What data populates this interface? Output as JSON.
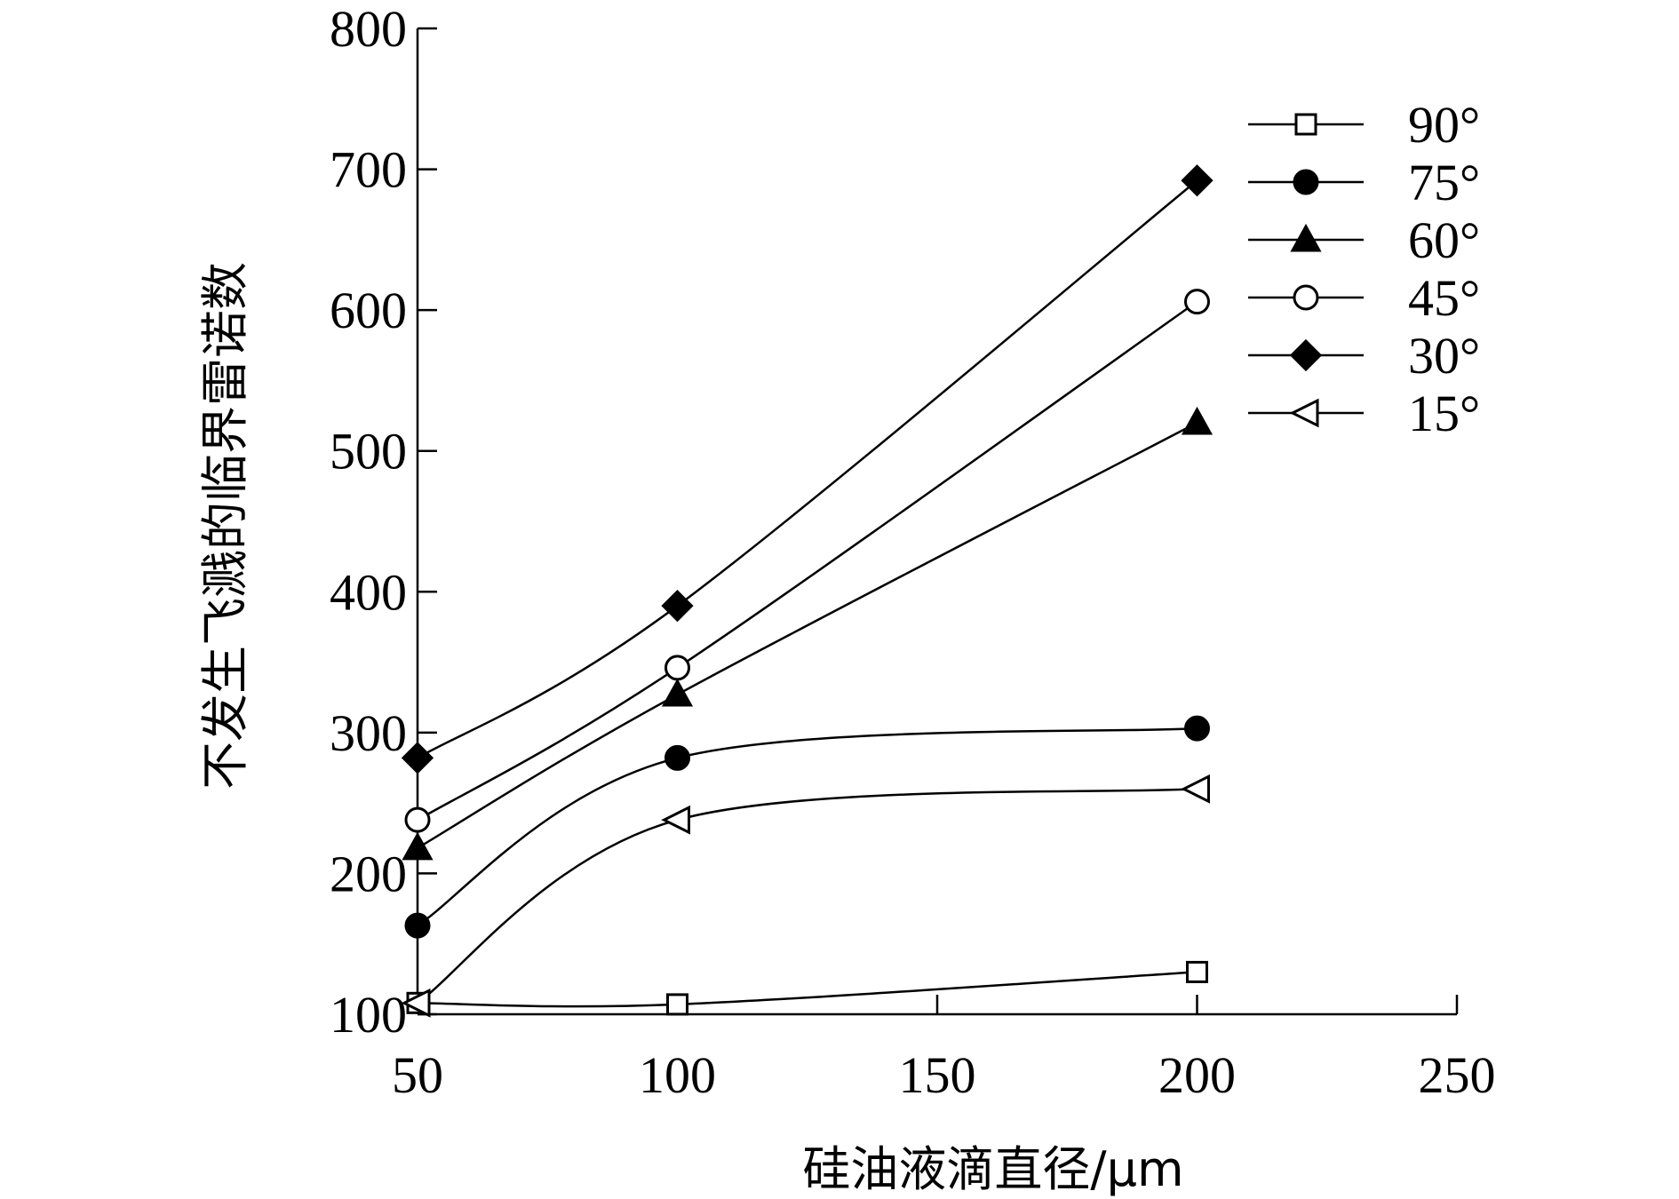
{
  "chart_data": {
    "type": "line",
    "title": "",
    "xlabel": "硅油液滴直径/μm",
    "ylabel": "不发生飞溅的临界雷诺数",
    "xlim": [
      50,
      250
    ],
    "ylim": [
      100,
      800
    ],
    "xticks": [
      50,
      100,
      150,
      200,
      250
    ],
    "yticks": [
      100,
      200,
      300,
      400,
      500,
      600,
      700,
      800
    ],
    "grid": false,
    "legend_position": "top-right",
    "x": [
      50,
      100,
      200
    ],
    "series": [
      {
        "name": "90°",
        "marker": "square-open",
        "values": [
          108,
          107,
          130
        ]
      },
      {
        "name": "75°",
        "marker": "circle-filled",
        "values": [
          163,
          282,
          303
        ]
      },
      {
        "name": "60°",
        "marker": "triangle-up-filled",
        "values": [
          218,
          327,
          520
        ]
      },
      {
        "name": "45°",
        "marker": "circle-open",
        "values": [
          238,
          346,
          606
        ]
      },
      {
        "name": "30°",
        "marker": "diamond-filled",
        "values": [
          282,
          390,
          692
        ]
      },
      {
        "name": "15°",
        "marker": "triangle-left-open",
        "values": [
          108,
          238,
          260
        ]
      }
    ]
  }
}
